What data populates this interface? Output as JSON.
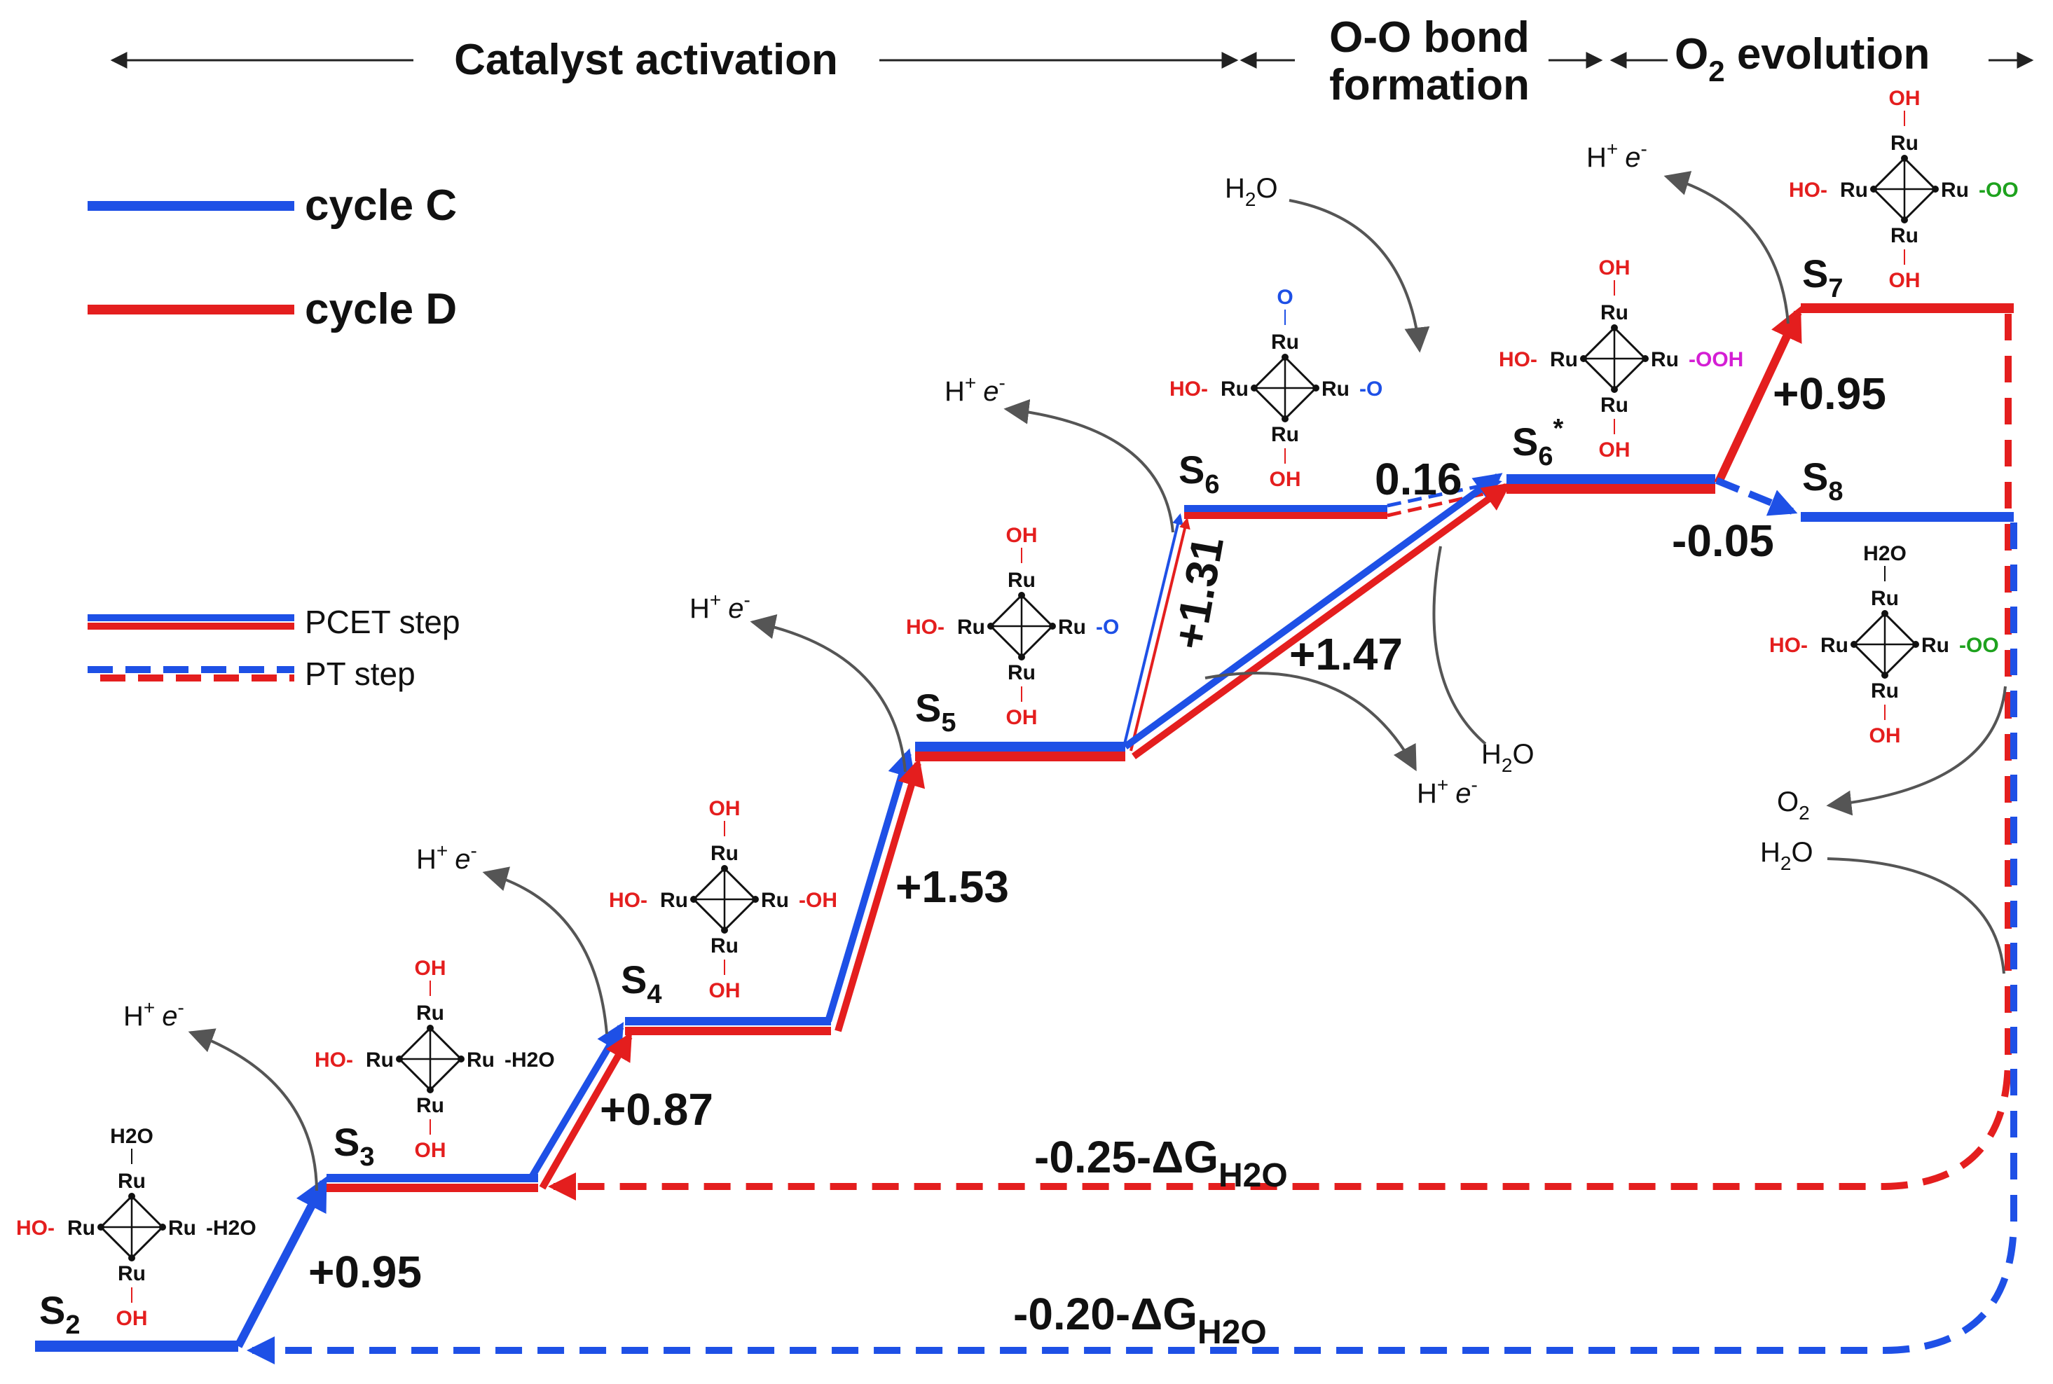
{
  "colors": {
    "cycle_c": "#1e50e6",
    "cycle_d": "#e41e1e",
    "arrow_gray": "#555555",
    "ligand_red": "#e41e1e",
    "ligand_blue": "#1e50e6",
    "ligand_green": "#1ea21e",
    "ligand_magenta": "#d41ed4"
  },
  "phases": {
    "catalyst_activation": "Catalyst activation",
    "oo_bond_line1": "O-O bond",
    "oo_bond_line2": "formation",
    "o2_evolution_main": "O",
    "o2_evolution_sub": "2",
    "o2_evolution_rest": " evolution"
  },
  "legend": {
    "cycle_c": "cycle C",
    "cycle_d": "cycle D",
    "pcet_step": "PCET step",
    "pt_step": "PT step"
  },
  "states": {
    "s2": {
      "main": "S",
      "sub": "2",
      "sup": ""
    },
    "s3": {
      "main": "S",
      "sub": "3",
      "sup": ""
    },
    "s4": {
      "main": "S",
      "sub": "4",
      "sup": ""
    },
    "s5": {
      "main": "S",
      "sub": "5",
      "sup": ""
    },
    "s6": {
      "main": "S",
      "sub": "6",
      "sup": ""
    },
    "s6star": {
      "main": "S",
      "sub": "6",
      "sup": "*"
    },
    "s7": {
      "main": "S",
      "sub": "7",
      "sup": ""
    },
    "s8": {
      "main": "S",
      "sub": "8",
      "sup": ""
    }
  },
  "energies": {
    "s2_s3": "+0.95",
    "s3_s4": "+0.87",
    "s4_s5": "+1.53",
    "s5_s6": "+1.31",
    "s5_s6star": "+1.47",
    "s6_s6star": "0.16",
    "s6star_s7": "+0.95",
    "s6star_s8": "-0.05",
    "return_d_main": "-0.25-ΔG",
    "return_d_sub": "H2O",
    "return_c_main": "-0.20-ΔG",
    "return_c_sub": "H2O"
  },
  "species": {
    "h": "H",
    "plus": "+",
    "e": "e",
    "minus": "-",
    "h2o_main": "H",
    "h2o_sub": "2",
    "h2o_rest": "O",
    "o2_main": "O",
    "o2_sub": "2"
  },
  "ligands": {
    "ru": "Ru",
    "oh": "OH",
    "ho": "HO-",
    "h2o_top": "H2O",
    "h2o_right": "-H2O",
    "oh_right": "-OH",
    "o_right": "-O",
    "o_top": "O",
    "ooh_right": "-OOH",
    "oo_right": "-OO"
  }
}
